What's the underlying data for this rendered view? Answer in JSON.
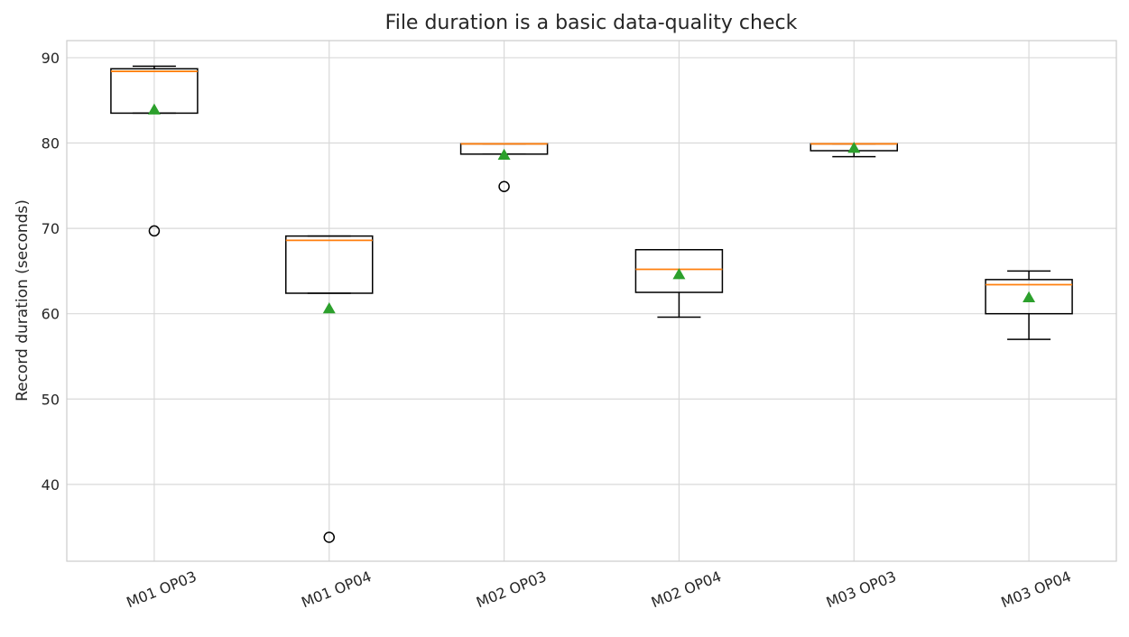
{
  "chart_data": {
    "type": "boxplot",
    "title": "File duration is a basic data-quality check",
    "xlabel": "",
    "ylabel": "Record duration (seconds)",
    "ylim": [
      31,
      92
    ],
    "yticks": [
      40,
      50,
      60,
      70,
      80,
      90
    ],
    "grid": true,
    "colors": {
      "box": "#000000",
      "median": "#ff7f0e",
      "mean": "#2ca02c",
      "grid": "#d9d9d9",
      "axes": "#cccccc"
    },
    "categories": [
      "M01 OP03",
      "M01 OP04",
      "M02 OP03",
      "M02 OP04",
      "M03 OP03",
      "M03 OP04"
    ],
    "boxes": [
      {
        "whisker_low": 83.5,
        "q1": 83.5,
        "median": 88.4,
        "q3": 88.7,
        "whisker_high": 89.0,
        "mean": 83.9,
        "outliers": [
          69.7
        ]
      },
      {
        "whisker_low": 62.4,
        "q1": 62.4,
        "median": 68.6,
        "q3": 69.1,
        "whisker_high": 69.1,
        "mean": 60.6,
        "outliers": [
          33.8
        ]
      },
      {
        "whisker_low": 78.7,
        "q1": 78.7,
        "median": 79.9,
        "q3": 79.9,
        "whisker_high": 79.9,
        "mean": 78.6,
        "outliers": [
          74.9
        ]
      },
      {
        "whisker_low": 59.6,
        "q1": 62.5,
        "median": 65.2,
        "q3": 67.5,
        "whisker_high": 67.5,
        "mean": 64.6,
        "outliers": []
      },
      {
        "whisker_low": 78.4,
        "q1": 79.1,
        "median": 79.9,
        "q3": 79.9,
        "whisker_high": 79.9,
        "mean": 79.4,
        "outliers": []
      },
      {
        "whisker_low": 57.0,
        "q1": 60.0,
        "median": 63.4,
        "q3": 64.0,
        "whisker_high": 65.0,
        "mean": 61.9,
        "outliers": []
      }
    ]
  }
}
